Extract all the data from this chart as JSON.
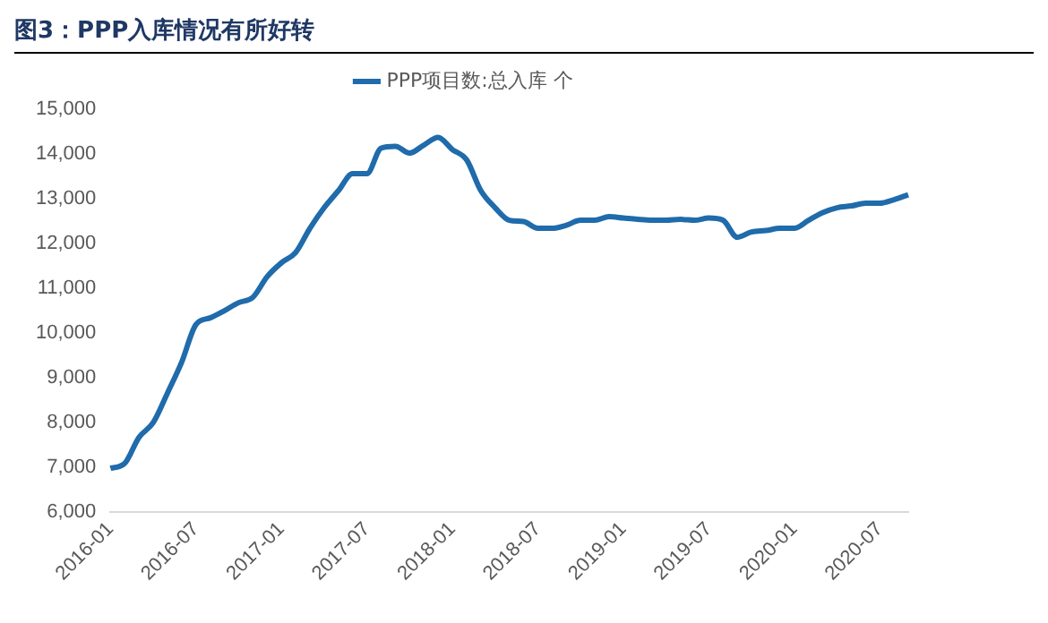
{
  "chart_data": {
    "type": "line",
    "title": "图3：PPP入库情况有所好转",
    "categories": [
      "2016-01",
      null,
      null,
      null,
      null,
      null,
      "2016-07",
      null,
      null,
      null,
      null,
      null,
      "2017-01",
      null,
      null,
      null,
      null,
      null,
      "2017-07",
      null,
      null,
      null,
      null,
      null,
      "2018-01",
      null,
      null,
      null,
      null,
      null,
      "2018-07",
      null,
      null,
      null,
      null,
      null,
      "2019-01",
      null,
      null,
      null,
      null,
      null,
      "2019-07",
      null,
      null,
      null,
      null,
      null,
      "2020-01",
      null,
      null,
      null,
      null,
      null,
      "2020-07",
      null,
      null
    ],
    "series": [
      {
        "name": "PPP项目数:总入库 个",
        "color": "#1f6bab",
        "values": [
          6980,
          7090,
          7670,
          8000,
          8660,
          9350,
          10190,
          10340,
          10500,
          10680,
          10800,
          11260,
          11570,
          11800,
          12340,
          12800,
          13180,
          13560,
          13560,
          14130,
          14170,
          14020,
          14200,
          14370,
          14100,
          13870,
          13180,
          12800,
          12520,
          12490,
          12340,
          12340,
          12410,
          12520,
          12520,
          12600,
          12570,
          12540,
          12520,
          12520,
          12540,
          12520,
          12570,
          12520,
          12140,
          12260,
          12290,
          12340,
          12340,
          12520,
          12690,
          12800,
          12840,
          12900,
          12900,
          12980,
          13090
        ]
      }
    ],
    "ylim": [
      6000,
      15000
    ],
    "yticks": [
      {
        "value": 6000,
        "label": "6,000"
      },
      {
        "value": 7000,
        "label": "7,000"
      },
      {
        "value": 8000,
        "label": "8,000"
      },
      {
        "value": 9000,
        "label": "9,000"
      },
      {
        "value": 10000,
        "label": "10,000"
      },
      {
        "value": 11000,
        "label": "11,000"
      },
      {
        "value": 12000,
        "label": "12,000"
      },
      {
        "value": 13000,
        "label": "13,000"
      },
      {
        "value": 14000,
        "label": "14,000"
      },
      {
        "value": 15000,
        "label": "15,000"
      }
    ],
    "grid": false,
    "legend": "top",
    "marker": "none",
    "line_style": "solid"
  }
}
